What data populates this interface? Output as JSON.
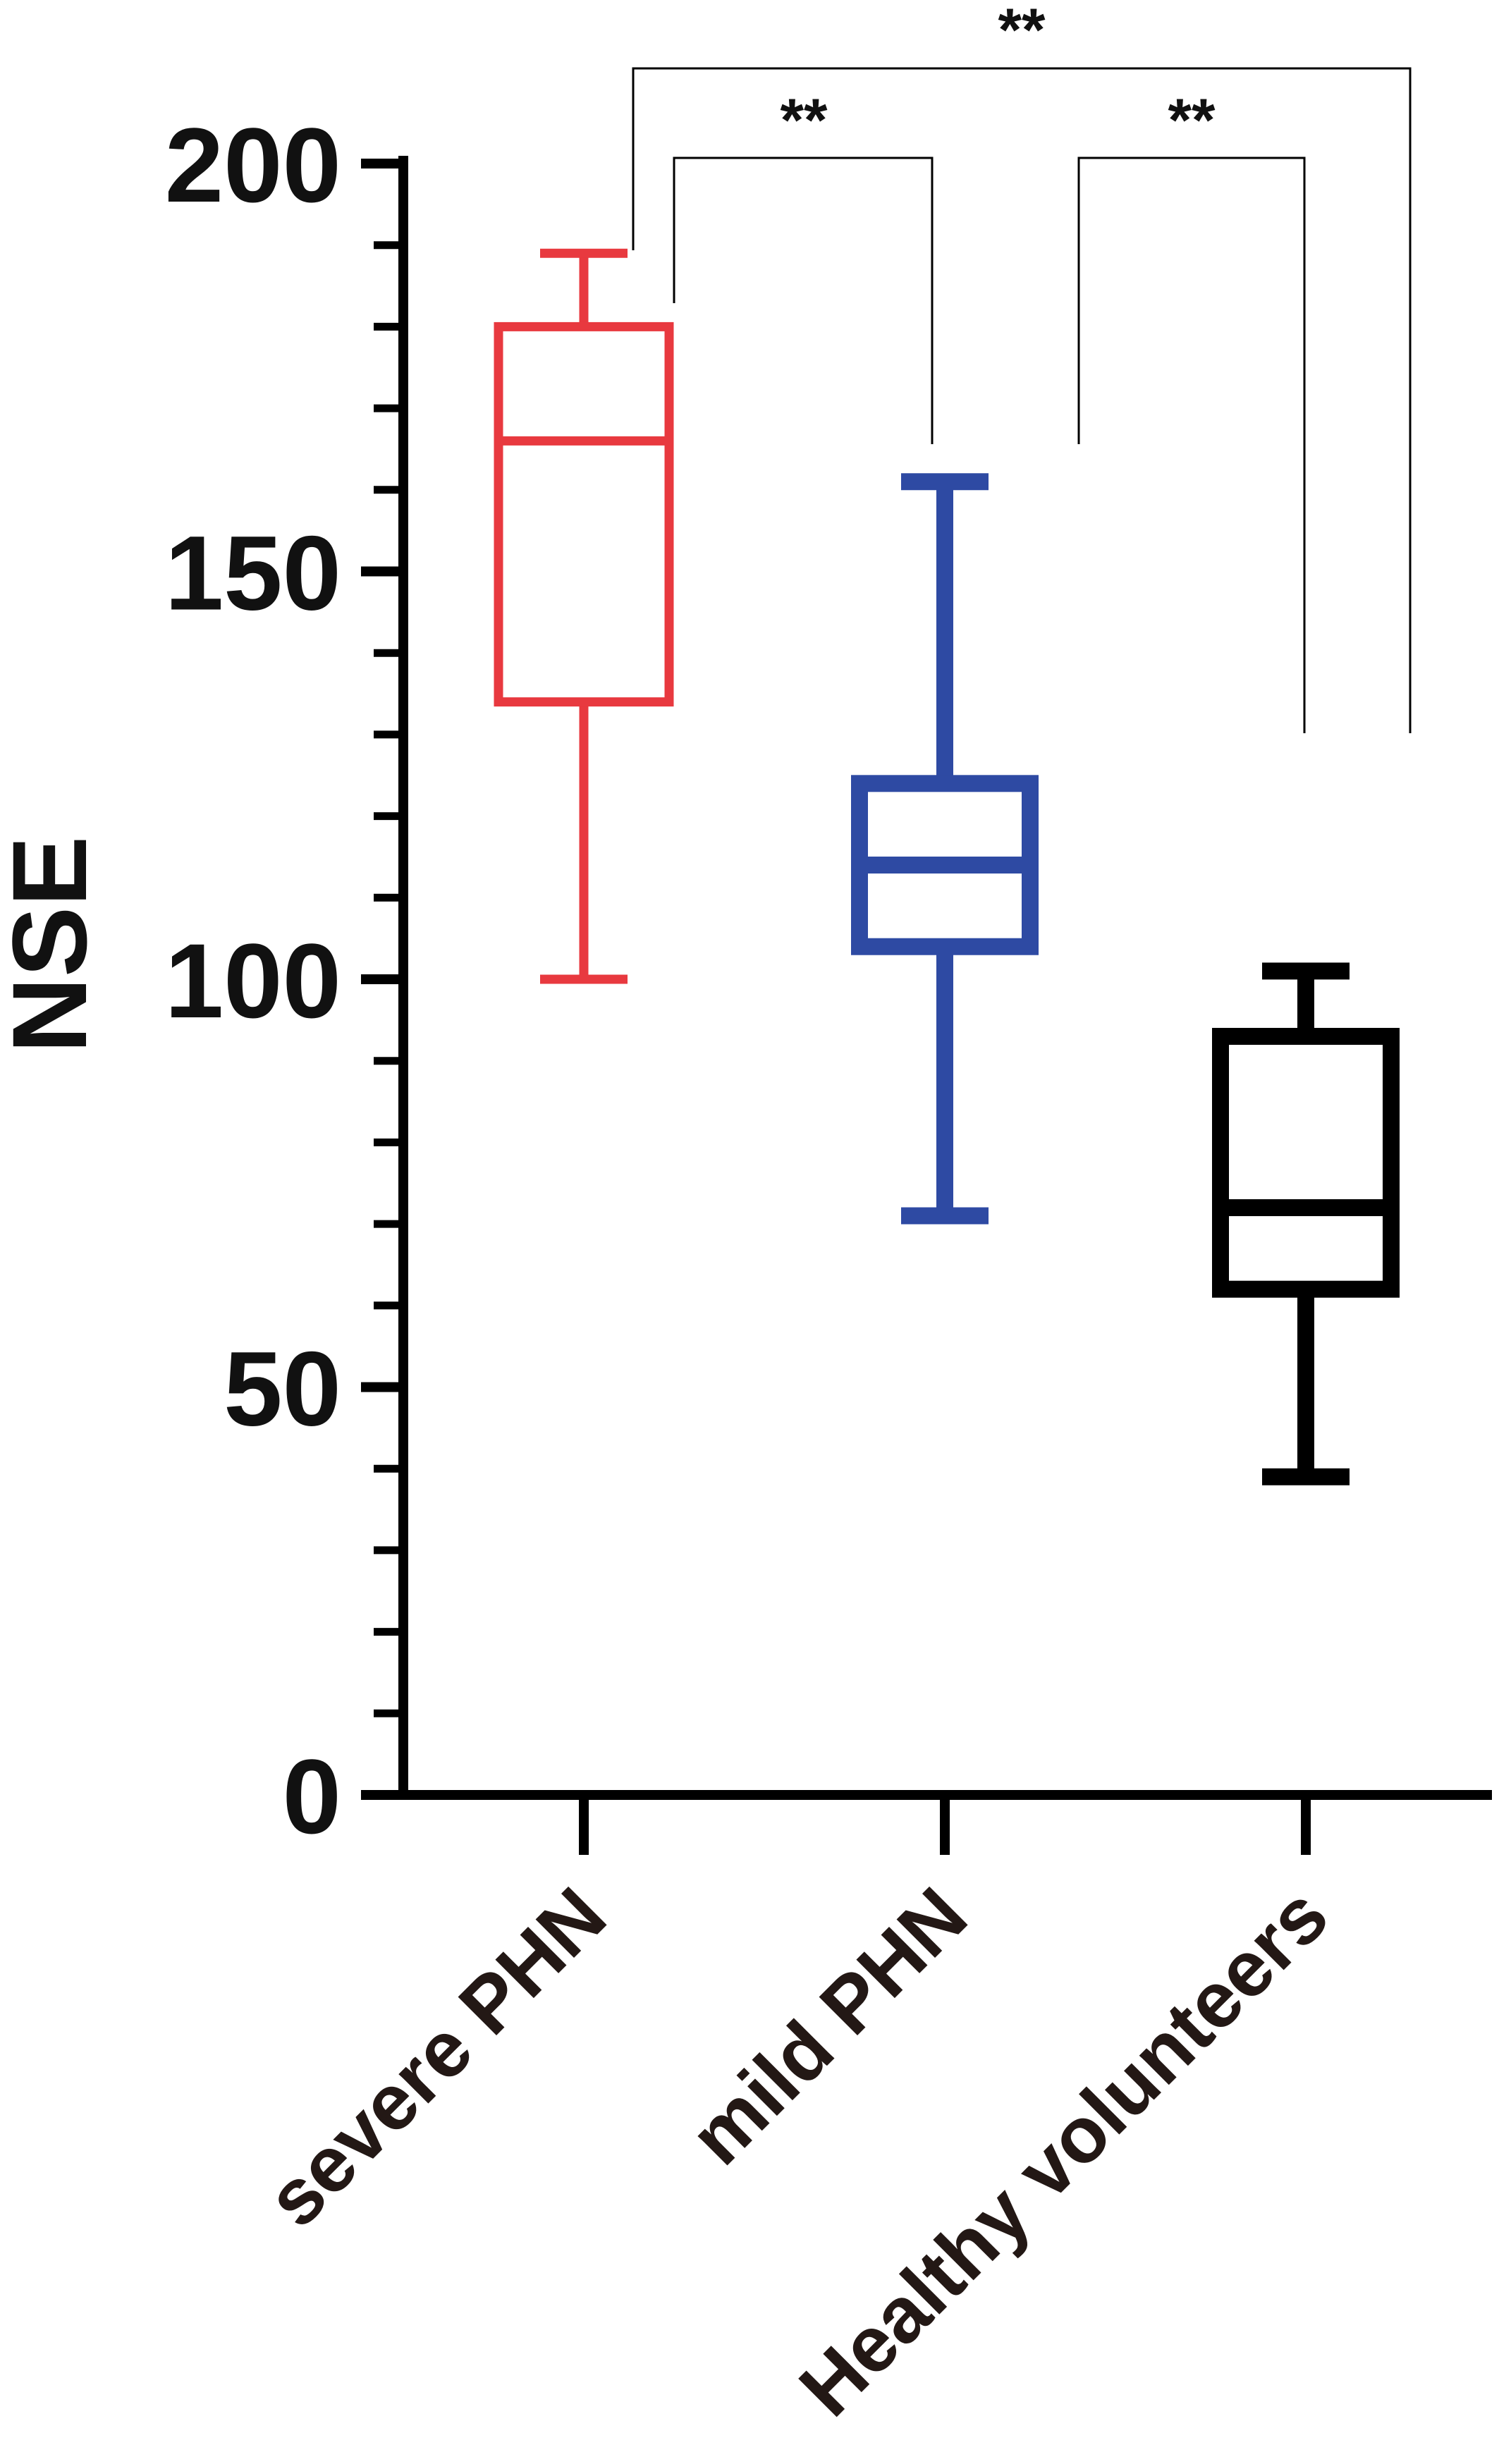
{
  "chart_data": {
    "type": "box",
    "title": "",
    "xlabel": "",
    "ylabel": "NSE",
    "ylim": [
      0,
      200
    ],
    "yticks": [
      0,
      50,
      100,
      150,
      200
    ],
    "yticks_text": [
      "0",
      "50",
      "100",
      "150",
      "200"
    ],
    "minor_tick_step": 10,
    "grid": false,
    "legend": "none",
    "categories": [
      "severe PHN",
      "mild PHN",
      "Healthy volunteers"
    ],
    "series": [
      {
        "category": "severe PHN",
        "color": "#e8393f",
        "min": 100,
        "q1": 134,
        "median": 166,
        "q3": 180,
        "max": 189
      },
      {
        "category": "mild PHN",
        "color": "#2e4aa3",
        "min": 71,
        "q1": 104,
        "median": 114,
        "q3": 124,
        "max": 161
      },
      {
        "category": "Healthy volunteers",
        "color": "#000000",
        "min": 39,
        "q1": 62,
        "median": 72,
        "q3": 93,
        "max": 101
      }
    ],
    "significance": [
      {
        "from": 0,
        "to": 1,
        "label": "**"
      },
      {
        "from": 1,
        "to": 2,
        "label": "**"
      },
      {
        "from": 0,
        "to": 2,
        "label": "**"
      }
    ]
  }
}
